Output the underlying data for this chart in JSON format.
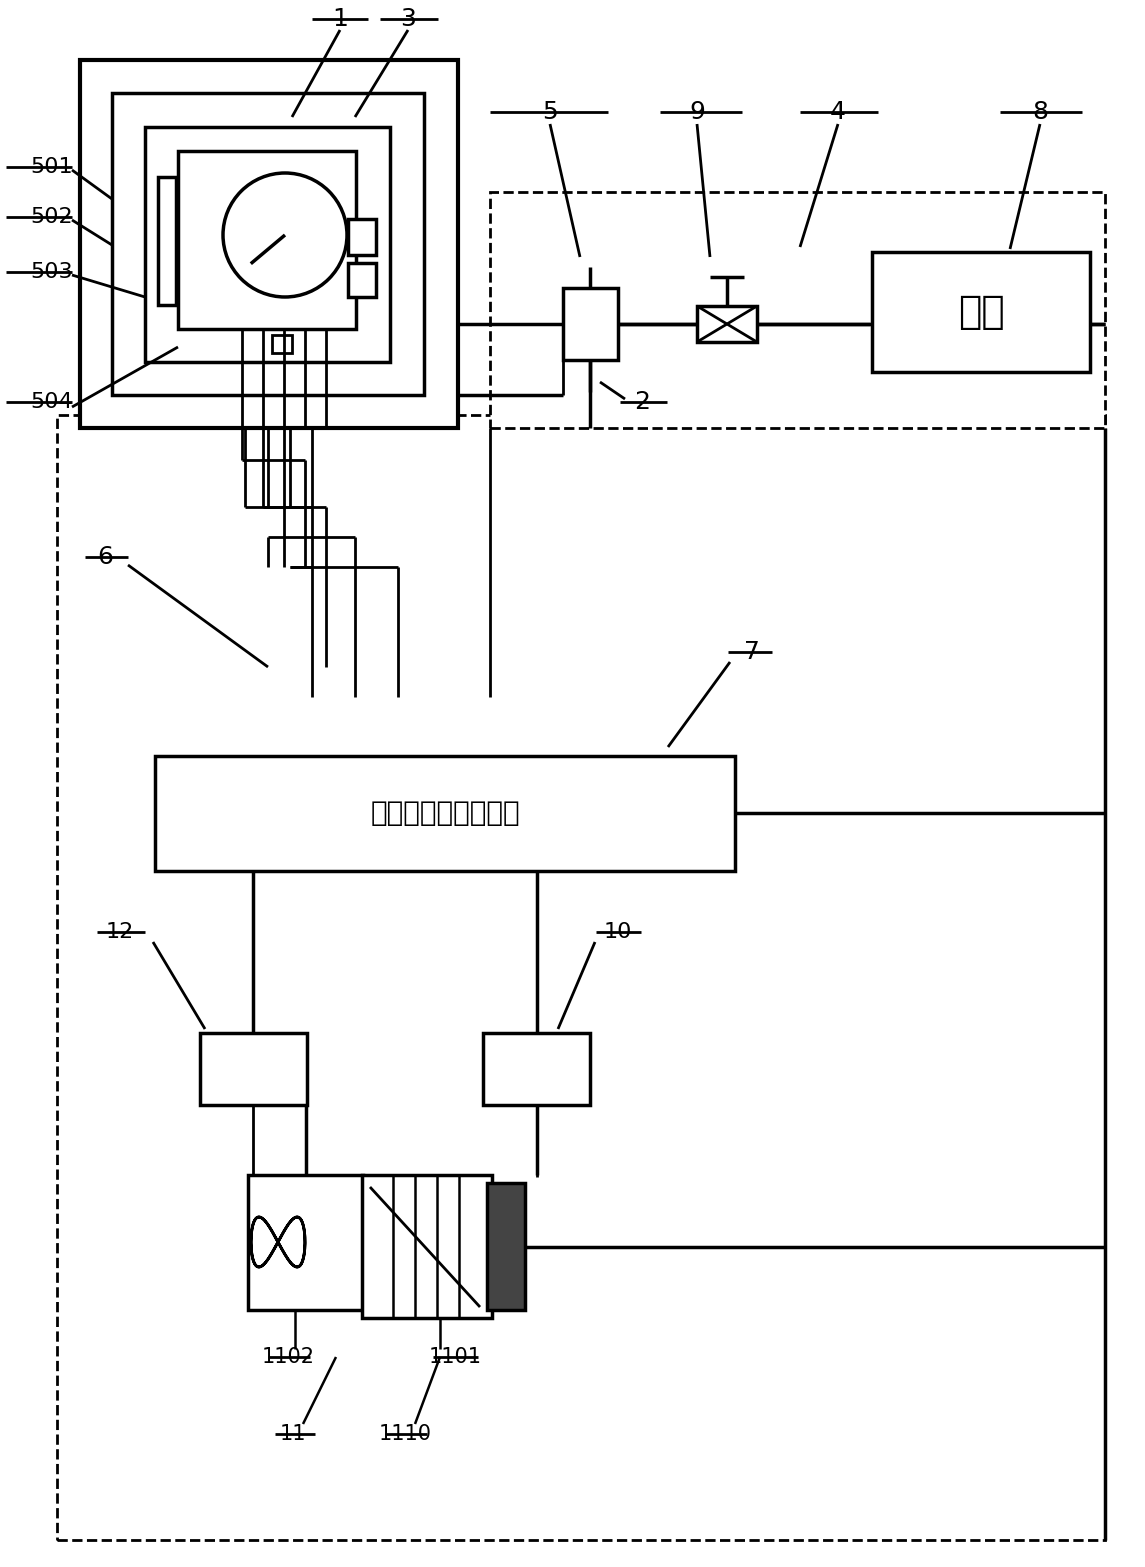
{
  "bg_color": "#ffffff",
  "lc": "#000000",
  "fig_width": 11.45,
  "fig_height": 15.67,
  "dpi": 100,
  "qiyuan": "气源",
  "computer": "计算机数据处理系统"
}
